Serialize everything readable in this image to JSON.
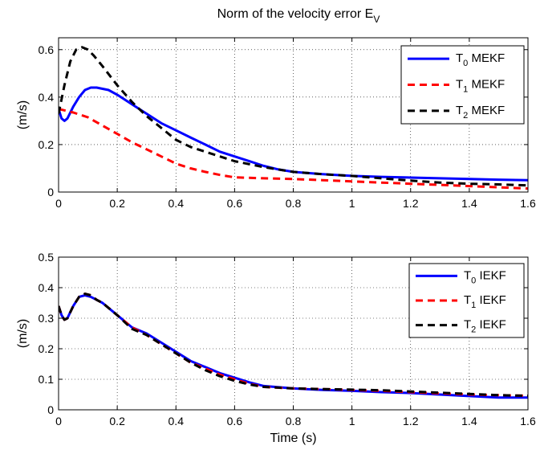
{
  "figure": {
    "title": "Norm of the velocity error E",
    "title_sub": "V"
  },
  "chart_data": [
    {
      "type": "line",
      "title": "Norm of the velocity error E_V",
      "xlabel": "",
      "ylabel": "(m/s)",
      "xlim": [
        0,
        1.6
      ],
      "ylim": [
        0,
        0.65
      ],
      "xticks": [
        "0",
        "0.2",
        "0.4",
        "0.6",
        "0.8",
        "1",
        "1.2",
        "1.4",
        "1.6"
      ],
      "yticks": [
        "0",
        "0.2",
        "0.4",
        "0.6"
      ],
      "grid": true,
      "legend_position": "top-right",
      "series": [
        {
          "name": "T0 MEKF",
          "label_main": "T",
          "label_sub": "0",
          "label_rest": " MEKF",
          "color": "#0000ff",
          "dash": "solid",
          "x": [
            0,
            0.01,
            0.02,
            0.03,
            0.05,
            0.07,
            0.09,
            0.11,
            0.13,
            0.15,
            0.17,
            0.2,
            0.25,
            0.3,
            0.35,
            0.4,
            0.45,
            0.5,
            0.55,
            0.6,
            0.65,
            0.7,
            0.75,
            0.8,
            0.9,
            1.0,
            1.1,
            1.2,
            1.3,
            1.4,
            1.5,
            1.6
          ],
          "y": [
            0.35,
            0.31,
            0.3,
            0.31,
            0.36,
            0.4,
            0.43,
            0.44,
            0.44,
            0.435,
            0.43,
            0.41,
            0.37,
            0.33,
            0.29,
            0.26,
            0.23,
            0.2,
            0.17,
            0.15,
            0.13,
            0.11,
            0.095,
            0.085,
            0.075,
            0.068,
            0.064,
            0.061,
            0.058,
            0.055,
            0.052,
            0.05
          ]
        },
        {
          "name": "T1 MEKF",
          "label_main": "T",
          "label_sub": "1",
          "label_rest": " MEKF",
          "color": "#ff0000",
          "dash": "dashed",
          "x": [
            0,
            0.05,
            0.1,
            0.15,
            0.2,
            0.25,
            0.3,
            0.35,
            0.4,
            0.45,
            0.5,
            0.55,
            0.6,
            0.7,
            0.8,
            0.9,
            1.0,
            1.1,
            1.2,
            1.3,
            1.4,
            1.5,
            1.6
          ],
          "y": [
            0.35,
            0.335,
            0.315,
            0.28,
            0.245,
            0.21,
            0.18,
            0.15,
            0.12,
            0.1,
            0.085,
            0.072,
            0.062,
            0.058,
            0.055,
            0.05,
            0.045,
            0.04,
            0.035,
            0.03,
            0.025,
            0.02,
            0.015
          ]
        },
        {
          "name": "T2 MEKF",
          "label_main": "T",
          "label_sub": "2",
          "label_rest": " MEKF",
          "color": "#000000",
          "dash": "dashed",
          "x": [
            0,
            0.02,
            0.04,
            0.06,
            0.08,
            0.1,
            0.12,
            0.15,
            0.2,
            0.25,
            0.3,
            0.35,
            0.4,
            0.45,
            0.5,
            0.55,
            0.6,
            0.7,
            0.8,
            0.9,
            1.0,
            1.1,
            1.2,
            1.3,
            1.4,
            1.5,
            1.6
          ],
          "y": [
            0.33,
            0.45,
            0.55,
            0.6,
            0.61,
            0.6,
            0.575,
            0.53,
            0.45,
            0.38,
            0.32,
            0.27,
            0.22,
            0.19,
            0.17,
            0.15,
            0.13,
            0.105,
            0.085,
            0.075,
            0.068,
            0.058,
            0.048,
            0.04,
            0.035,
            0.032,
            0.028
          ]
        }
      ]
    },
    {
      "type": "line",
      "title": "",
      "xlabel": "Time (s)",
      "ylabel": "(m/s)",
      "xlim": [
        0,
        1.6
      ],
      "ylim": [
        0,
        0.5
      ],
      "xticks": [
        "0",
        "0.2",
        "0.4",
        "0.6",
        "0.8",
        "1",
        "1.2",
        "1.4",
        "1.6"
      ],
      "yticks": [
        "0",
        "0.1",
        "0.2",
        "0.3",
        "0.4",
        "0.5"
      ],
      "grid": true,
      "legend_position": "top-right",
      "series": [
        {
          "name": "T0 IEKF",
          "label_main": "T",
          "label_sub": "0",
          "label_rest": " IEKF",
          "color": "#0000ff",
          "dash": "solid",
          "x": [
            0,
            0.01,
            0.02,
            0.03,
            0.05,
            0.07,
            0.09,
            0.11,
            0.13,
            0.15,
            0.2,
            0.25,
            0.3,
            0.35,
            0.4,
            0.45,
            0.5,
            0.55,
            0.6,
            0.65,
            0.7,
            0.8,
            0.9,
            1.0,
            1.1,
            1.2,
            1.3,
            1.4,
            1.5,
            1.6
          ],
          "y": [
            0.34,
            0.31,
            0.295,
            0.3,
            0.34,
            0.37,
            0.375,
            0.37,
            0.36,
            0.35,
            0.31,
            0.27,
            0.25,
            0.22,
            0.19,
            0.16,
            0.14,
            0.12,
            0.105,
            0.09,
            0.078,
            0.07,
            0.065,
            0.062,
            0.058,
            0.055,
            0.05,
            0.045,
            0.04,
            0.04
          ]
        },
        {
          "name": "T1 IEKF",
          "label_main": "T",
          "label_sub": "1",
          "label_rest": " IEKF",
          "color": "#ff0000",
          "dash": "dashed",
          "x": [
            0,
            0.01,
            0.02,
            0.03,
            0.05,
            0.07,
            0.09,
            0.11,
            0.13,
            0.15,
            0.2,
            0.25,
            0.3,
            0.35,
            0.4,
            0.45,
            0.5,
            0.55,
            0.6,
            0.65,
            0.7,
            0.8,
            0.9,
            1.0,
            1.1,
            1.2,
            1.3,
            1.4,
            1.5,
            1.6
          ],
          "y": [
            0.34,
            0.31,
            0.295,
            0.3,
            0.34,
            0.37,
            0.38,
            0.375,
            0.36,
            0.35,
            0.31,
            0.27,
            0.245,
            0.215,
            0.185,
            0.155,
            0.135,
            0.115,
            0.1,
            0.085,
            0.075,
            0.07,
            0.068,
            0.065,
            0.062,
            0.058,
            0.054,
            0.05,
            0.048,
            0.046
          ]
        },
        {
          "name": "T2 IEKF",
          "label_main": "T",
          "label_sub": "2",
          "label_rest": " IEKF",
          "color": "#000000",
          "dash": "dashed",
          "x": [
            0,
            0.01,
            0.02,
            0.03,
            0.05,
            0.07,
            0.09,
            0.11,
            0.13,
            0.15,
            0.2,
            0.25,
            0.3,
            0.35,
            0.4,
            0.45,
            0.5,
            0.55,
            0.6,
            0.65,
            0.7,
            0.8,
            0.9,
            1.0,
            1.1,
            1.2,
            1.3,
            1.4,
            1.5,
            1.6
          ],
          "y": [
            0.34,
            0.31,
            0.295,
            0.3,
            0.34,
            0.37,
            0.38,
            0.375,
            0.36,
            0.35,
            0.31,
            0.265,
            0.245,
            0.215,
            0.185,
            0.155,
            0.13,
            0.11,
            0.095,
            0.083,
            0.075,
            0.07,
            0.068,
            0.066,
            0.064,
            0.06,
            0.056,
            0.052,
            0.048,
            0.046
          ]
        }
      ]
    }
  ]
}
